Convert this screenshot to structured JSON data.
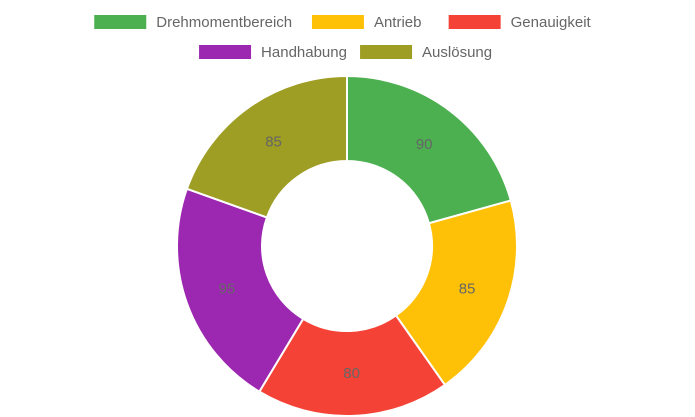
{
  "chart_data": {
    "type": "pie",
    "style": "doughnut",
    "categories": [
      "Drehmomentbereich",
      "Antrieb",
      "Genauigkeit",
      "Handhabung",
      "Auslösung"
    ],
    "values": [
      90,
      85,
      80,
      95,
      85
    ],
    "colors": [
      "#4caf50",
      "#ffc107",
      "#f44336",
      "#9c27b0",
      "#9e9d24"
    ],
    "legend_position": "top",
    "data_labels": true
  }
}
